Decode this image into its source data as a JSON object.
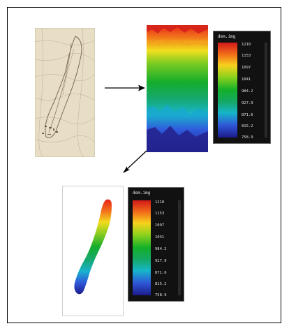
{
  "legend_top": {
    "title": "dem.img",
    "ticks": [
      "1210",
      "1153",
      "1097",
      "1041",
      "984.2",
      "927.9",
      "871.6",
      "815.2",
      "758.9"
    ]
  },
  "legend_bottom": {
    "title": "dem.img",
    "ticks": [
      "1210",
      "1153",
      "1097",
      "1041",
      "984.2",
      "927.9",
      "871.6",
      "815.2",
      "758.9"
    ]
  },
  "colors": {
    "legend_bg": "#111111",
    "frame_border": "#000000",
    "map_paper": "#e9dfc8"
  }
}
